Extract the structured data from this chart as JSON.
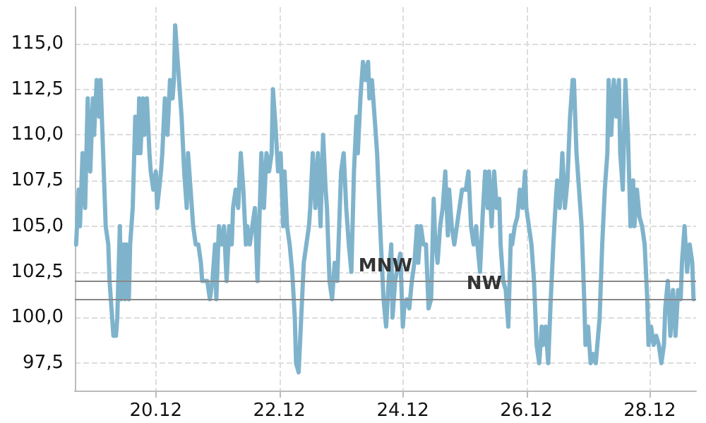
{
  "chart_data": {
    "type": "line",
    "x": [
      "--12-18T17:00",
      "--12-18T18:00",
      "--12-18T18:30",
      "--12-18T19:30",
      "--12-18T20:30",
      "--12-18T21:30",
      "--12-18T22:30",
      "--12-18T23:30",
      "--12-19T00:00",
      "--12-19T01:00",
      "--12-19T02:00",
      "--12-19T02:30",
      "--12-19T03:30",
      "--12-19T04:30",
      "--12-19T05:30",
      "--12-19T06:00",
      "--12-19T06:30",
      "--12-19T07:30",
      "--12-19T08:30",
      "--12-19T09:00",
      "--12-19T10:00",
      "--12-19T10:30",
      "--12-19T11:30",
      "--12-19T12:00",
      "--12-19T12:30",
      "--12-19T13:30",
      "--12-19T14:00",
      "--12-19T15:00",
      "--12-19T16:00",
      "--12-19T17:00",
      "--12-19T17:30",
      "--12-19T18:00",
      "--12-19T19:00",
      "--12-19T19:30",
      "--12-19T20:30",
      "--12-19T21:30",
      "--12-19T22:00",
      "--12-19T23:00",
      "--12-20T00:00",
      "--12-20T00:30",
      "--12-20T02:00",
      "--12-20T02:30",
      "--12-20T03:30",
      "--12-20T04:30",
      "--12-20T05:30",
      "--12-20T06:30",
      "--12-20T07:00",
      "--12-20T07:30",
      "--12-20T08:30",
      "--12-20T09:00",
      "--12-20T10:00",
      "--12-20T11:00",
      "--12-20T12:00",
      "--12-20T12:30",
      "--12-20T13:30",
      "--12-20T14:30",
      "--12-20T15:30",
      "--12-20T16:30",
      "--12-20T17:30",
      "--12-20T18:00",
      "--12-20T20:00",
      "--12-20T21:00",
      "--12-20T22:00",
      "--12-20T23:00",
      "--12-20T23:30",
      "--12-21T00:30",
      "--12-21T01:30",
      "--12-21T02:30",
      "--12-21T03:30",
      "--12-21T04:30",
      "--12-21T05:30",
      "--12-21T06:00",
      "--12-21T07:00",
      "--12-21T08:00",
      "--12-21T09:00",
      "--12-21T10:00",
      "--12-21T11:00",
      "--12-21T11:30",
      "--12-21T12:30",
      "--12-21T14:30",
      "--12-21T15:30",
      "--12-21T16:30",
      "--12-21T17:00",
      "--12-21T18:00",
      "--12-21T19:00",
      "--12-21T20:00",
      "--12-21T21:00",
      "--12-21T21:30",
      "--12-21T22:30",
      "--12-21T23:30",
      "--12-22T00:30",
      "--12-22T01:30",
      "--12-22T02:00",
      "--12-22T03:00",
      "--12-22T04:00",
      "--12-22T05:00",
      "--12-22T06:00",
      "--12-22T06:30",
      "--12-22T07:30",
      "--12-22T08:30",
      "--12-22T09:30",
      "--12-22T10:30",
      "--12-22T11:30",
      "--12-22T12:00",
      "--12-22T13:00",
      "--12-22T14:00",
      "--12-22T15:00",
      "--12-22T16:00",
      "--12-22T17:00",
      "--12-22T18:00",
      "--12-22T18:30",
      "--12-22T19:30",
      "--12-22T20:30",
      "--12-22T21:30",
      "--12-22T22:30",
      "--12-22T23:30",
      "--12-23T00:00",
      "--12-23T01:00",
      "--12-23T02:00",
      "--12-23T03:00",
      "--12-23T04:00",
      "--12-23T05:00",
      "--12-23T06:00",
      "--12-23T06:30",
      "--12-23T07:30",
      "--12-23T08:30",
      "--12-23T09:30",
      "--12-23T10:30",
      "--12-23T11:00",
      "--12-23T12:00",
      "--12-23T13:00",
      "--12-23T14:00",
      "--12-23T15:00",
      "--12-23T15:30",
      "--12-23T16:30",
      "--12-23T17:30",
      "--12-23T18:30",
      "--12-23T19:30",
      "--12-23T20:00",
      "--12-23T21:00",
      "--12-23T23:00",
      "--12-24T00:00",
      "--12-24T00:30",
      "--12-24T01:30",
      "--12-24T02:30",
      "--12-24T03:30",
      "--12-24T04:30",
      "--12-24T05:30",
      "--12-24T06:00",
      "--12-24T07:00",
      "--12-24T08:00",
      "--12-24T09:00",
      "--12-24T10:00",
      "--12-24T11:00",
      "--12-24T12:00",
      "--12-24T12:30",
      "--12-24T13:30",
      "--12-24T14:30",
      "--12-24T15:30",
      "--12-24T16:30",
      "--12-24T17:30",
      "--12-24T18:00",
      "--12-24T19:00",
      "--12-24T20:00",
      "--12-24T21:00",
      "--12-24T22:00",
      "--12-24T23:00",
      "--12-25T00:30",
      "--12-25T01:30",
      "--12-25T02:30",
      "--12-25T03:30",
      "--12-25T04:30",
      "--12-25T05:00",
      "--12-25T06:00",
      "--12-25T07:00",
      "--12-25T08:00",
      "--12-25T09:00",
      "--12-25T09:30",
      "--12-25T10:30",
      "--12-25T11:30",
      "--12-25T12:30",
      "--12-25T13:30",
      "--12-25T14:00",
      "--12-25T15:00",
      "--12-25T16:00",
      "--12-25T17:00",
      "--12-25T18:00",
      "--12-25T18:30",
      "--12-25T19:30",
      "--12-25T20:30",
      "--12-25T21:30",
      "--12-25T22:30",
      "--12-25T23:30",
      "--12-26T00:00",
      "--12-26T01:00",
      "--12-26T02:00",
      "--12-26T03:00",
      "--12-26T04:00",
      "--12-26T05:00",
      "--12-26T06:00",
      "--12-26T06:30",
      "--12-26T07:30",
      "--12-26T08:30",
      "--12-26T09:30",
      "--12-26T10:30",
      "--12-26T11:30",
      "--12-26T12:00",
      "--12-26T13:00",
      "--12-26T14:00",
      "--12-26T15:00",
      "--12-26T16:00",
      "--12-26T17:00",
      "--12-26T18:00",
      "--12-26T18:30",
      "--12-26T19:30",
      "--12-26T20:30",
      "--12-26T21:30",
      "--12-26T22:30",
      "--12-26T23:00",
      "--12-27T00:00",
      "--12-27T01:00",
      "--12-27T02:00",
      "--12-27T03:00",
      "--12-27T04:30",
      "--12-27T05:30",
      "--12-27T06:30",
      "--12-27T07:30",
      "--12-27T08:00",
      "--12-27T09:00",
      "--12-27T10:00",
      "--12-27T11:00",
      "--12-27T12:00",
      "--12-27T12:30",
      "--12-27T13:30",
      "--12-27T14:30",
      "--12-27T15:30",
      "--12-27T16:30",
      "--12-27T17:30",
      "--12-27T18:00",
      "--12-27T19:00",
      "--12-27T20:00",
      "--12-27T21:00",
      "--12-27T22:00",
      "--12-27T23:00",
      "--12-27T23:30",
      "--12-28T00:30",
      "--12-28T01:30",
      "--12-28T02:30",
      "--12-28T03:30",
      "--12-28T04:30",
      "--12-28T05:30",
      "--12-28T06:00",
      "--12-28T07:00",
      "--12-28T08:00",
      "--12-28T09:00",
      "--12-28T10:00",
      "--12-28T11:00",
      "--12-28T12:00",
      "--12-28T12:30",
      "--12-28T13:30",
      "--12-28T14:30",
      "--12-28T15:30",
      "--12-28T16:30",
      "--12-28T17:00"
    ],
    "series": [
      {
        "color": "#7fb3cc",
        "values": [
          104,
          107,
          105,
          109,
          106,
          112,
          108,
          112,
          110,
          113,
          111,
          113,
          109,
          105,
          104,
          102,
          101,
          99,
          99,
          100,
          105,
          101,
          104,
          101,
          104,
          101,
          104,
          106,
          111,
          109,
          112,
          109,
          112,
          110,
          112,
          109,
          108,
          107,
          108,
          106,
          108,
          109,
          112,
          110,
          113,
          112,
          113,
          116,
          114,
          113,
          111,
          108,
          106,
          109,
          107,
          105,
          104,
          104,
          103,
          102,
          102,
          101,
          102,
          104,
          101,
          105,
          104,
          105,
          102,
          105,
          104,
          106,
          107,
          106,
          109,
          107,
          104,
          105,
          104,
          106,
          102,
          106.5,
          109,
          106,
          109,
          108,
          109,
          112.5,
          110.5,
          108,
          109,
          105,
          108,
          105,
          104,
          102.5,
          100,
          97.5,
          97,
          100,
          103,
          104,
          105,
          106,
          109,
          106,
          109,
          105,
          110,
          107,
          106,
          102,
          101,
          103,
          102,
          106,
          108,
          109,
          106,
          104,
          102.5,
          108,
          111,
          109,
          112,
          114,
          113,
          114,
          112,
          113,
          111,
          109,
          105.5,
          104,
          101,
          99.5,
          102,
          104,
          100,
          102,
          103.5,
          99.5,
          100.5,
          101,
          100.5,
          102,
          103,
          105,
          103,
          105,
          104,
          104,
          100.5,
          101,
          106.5,
          104.5,
          103,
          105,
          106,
          108,
          104.5,
          107,
          105,
          104,
          105,
          106,
          107,
          107,
          108,
          105,
          104,
          105,
          104,
          102.5,
          105.5,
          108,
          106,
          108,
          105,
          108,
          106,
          106.5,
          104,
          102,
          101.5,
          99.5,
          104.5,
          104,
          105,
          105.5,
          107,
          106,
          108,
          106,
          105,
          104,
          102,
          98.5,
          97.5,
          99.5,
          98.5,
          99.5,
          97.5,
          101,
          104,
          106.5,
          107.5,
          106,
          109,
          106,
          107.5,
          111,
          113,
          113,
          109,
          107,
          105,
          101,
          98.5,
          99.5,
          97.5,
          98,
          97.5,
          100,
          104,
          107,
          109,
          113,
          110,
          113,
          111,
          113,
          109,
          107,
          113,
          110,
          105,
          107.5,
          105,
          107,
          105.5,
          105,
          104,
          101,
          98.5,
          99.5,
          98.5,
          99,
          98.5,
          97.5,
          98.5,
          100.5,
          102,
          99,
          101.5,
          99,
          101.5,
          101,
          103,
          105,
          102.5,
          104,
          103,
          101
        ]
      }
    ],
    "xlim": [
      "--12-18T16:30",
      "--12-28T18:00"
    ],
    "xticks": [
      {
        "value": "--12-20",
        "label": "20.12"
      },
      {
        "value": "--12-22",
        "label": "22.12"
      },
      {
        "value": "--12-24",
        "label": "24.12"
      },
      {
        "value": "--12-26",
        "label": "26.12"
      },
      {
        "value": "--12-28",
        "label": "28.12"
      }
    ],
    "ylim": [
      96,
      117
    ],
    "yticks": [
      {
        "value": 97.5,
        "label": "97,5"
      },
      {
        "value": 100,
        "label": "100,0"
      },
      {
        "value": 102.5,
        "label": "102,5"
      },
      {
        "value": 105,
        "label": "105,0"
      },
      {
        "value": 107.5,
        "label": "107,5"
      },
      {
        "value": 110,
        "label": "110,0"
      },
      {
        "value": 112.5,
        "label": "112,5"
      },
      {
        "value": 115,
        "label": "115,0"
      }
    ],
    "ref_lines": [
      {
        "axis": "y",
        "value": 102,
        "label": "MNW",
        "color": "#888888"
      },
      {
        "axis": "y",
        "value": 101,
        "label": "NW",
        "color": "#888888"
      }
    ],
    "grid": true,
    "marker": "none",
    "line_style": "solid"
  }
}
